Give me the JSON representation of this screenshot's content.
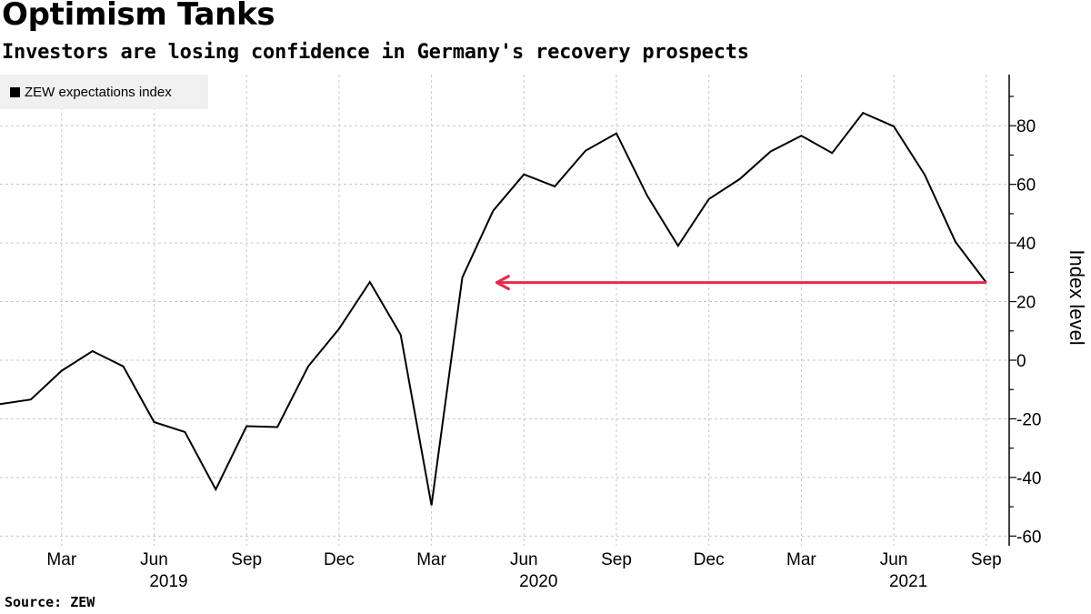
{
  "header": {
    "title": "Optimism Tanks",
    "subtitle": "Investors are losing confidence in Germany's recovery prospects"
  },
  "footer": {
    "source": "Source: ZEW"
  },
  "legend": {
    "label": "ZEW expectations index",
    "swatch_color": "#000000"
  },
  "chart_data": {
    "type": "line",
    "title": "Optimism Tanks",
    "subtitle": "Investors are losing confidence in Germany's recovery prospects",
    "xlabel": "",
    "ylabel": "Index level",
    "ylim": [
      -62,
      97
    ],
    "yticks": [
      -60,
      -40,
      -20,
      0,
      20,
      40,
      60,
      80
    ],
    "y_axis_side": "right",
    "grid": true,
    "legend_position": "top-left",
    "x_tick_labels": [
      {
        "month": "2019-03",
        "label": "Mar"
      },
      {
        "month": "2019-06",
        "label": "Jun"
      },
      {
        "month": "2019-09",
        "label": "Sep"
      },
      {
        "month": "2019-12",
        "label": "Dec"
      },
      {
        "month": "2020-03",
        "label": "Mar"
      },
      {
        "month": "2020-06",
        "label": "Jun"
      },
      {
        "month": "2020-09",
        "label": "Sep"
      },
      {
        "month": "2020-12",
        "label": "Dec"
      },
      {
        "month": "2021-03",
        "label": "Mar"
      },
      {
        "month": "2021-06",
        "label": "Jun"
      },
      {
        "month": "2021-09",
        "label": "Sep"
      }
    ],
    "year_labels": [
      {
        "month": "2019-06",
        "label": "2019"
      },
      {
        "month": "2020-06",
        "label": "2020"
      },
      {
        "month": "2021-06",
        "label": "2021"
      }
    ],
    "x": [
      "2019-01",
      "2019-02",
      "2019-03",
      "2019-04",
      "2019-05",
      "2019-06",
      "2019-07",
      "2019-08",
      "2019-09",
      "2019-10",
      "2019-11",
      "2019-12",
      "2020-01",
      "2020-02",
      "2020-03",
      "2020-04",
      "2020-05",
      "2020-06",
      "2020-07",
      "2020-08",
      "2020-09",
      "2020-10",
      "2020-11",
      "2020-12",
      "2021-01",
      "2021-02",
      "2021-03",
      "2021-04",
      "2021-05",
      "2021-06",
      "2021-07",
      "2021-08",
      "2021-09"
    ],
    "series": [
      {
        "name": "ZEW expectations index",
        "color": "#000000",
        "values": [
          -15.0,
          -13.4,
          -3.6,
          3.1,
          -2.1,
          -21.1,
          -24.5,
          -44.1,
          -22.5,
          -22.8,
          -2.1,
          10.7,
          26.7,
          8.7,
          -49.5,
          28.2,
          51.0,
          63.4,
          59.3,
          71.5,
          77.4,
          56.1,
          39.0,
          55.0,
          61.8,
          71.2,
          76.6,
          70.7,
          84.4,
          79.8,
          63.3,
          40.4,
          26.5
        ]
      }
    ],
    "annotations": [
      {
        "type": "arrow",
        "color": "#e8294b",
        "from": {
          "month": "2021-09",
          "value": 26.5
        },
        "to": {
          "month": "2020-05",
          "value": 26.5
        },
        "description": "Current level back to where it was in spring 2020"
      }
    ]
  }
}
